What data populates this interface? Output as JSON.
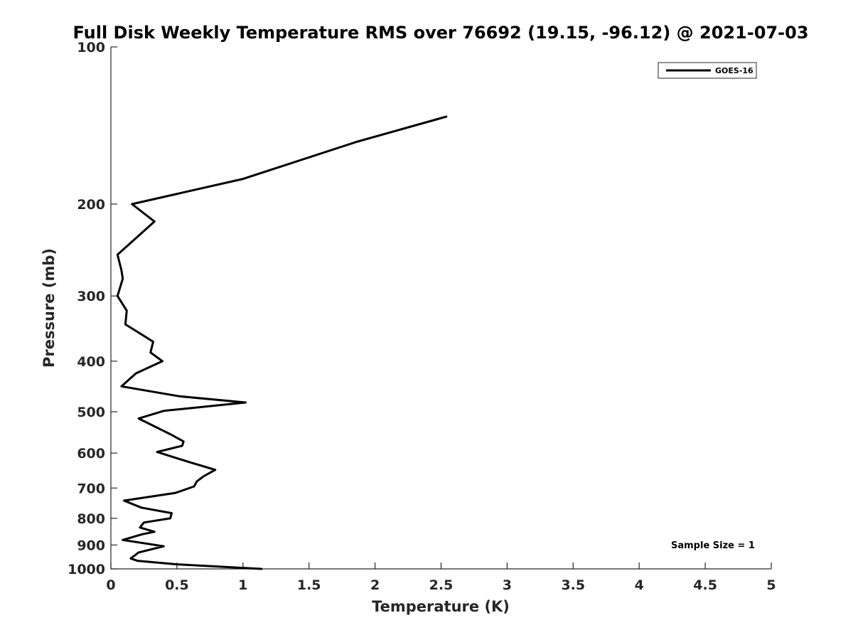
{
  "chart_data": {
    "type": "line",
    "title": "Full Disk Weekly Temperature RMS over 76692 (19.15, -96.12) @ 2021-07-03",
    "xlabel": "Temperature (K)",
    "ylabel": "Pressure (mb)",
    "xlim": [
      0,
      5
    ],
    "ylim": [
      100,
      1000
    ],
    "yscale": "log",
    "y_reversed": true,
    "x_ticks": [
      "0",
      "0.5",
      "1",
      "1.5",
      "2",
      "2.5",
      "3",
      "3.5",
      "4",
      "4.5",
      "5"
    ],
    "y_ticks": [
      "100",
      "200",
      "300",
      "400",
      "500",
      "600",
      "700",
      "800",
      "900",
      "1000"
    ],
    "grid": false,
    "legend_position": "top-right",
    "line_color": "#000000",
    "series": [
      {
        "name": "GOES-16",
        "points": [
          [
            2.54,
            136
          ],
          [
            1.86,
            152
          ],
          [
            1.0,
            179
          ],
          [
            0.16,
            200
          ],
          [
            0.33,
            216
          ],
          [
            0.05,
            250
          ],
          [
            0.08,
            268
          ],
          [
            0.09,
            278
          ],
          [
            0.05,
            300
          ],
          [
            0.12,
            320
          ],
          [
            0.11,
            340
          ],
          [
            0.32,
            367
          ],
          [
            0.3,
            385
          ],
          [
            0.39,
            400
          ],
          [
            0.19,
            422
          ],
          [
            0.08,
            447
          ],
          [
            0.52,
            467
          ],
          [
            1.02,
            480
          ],
          [
            0.4,
            498
          ],
          [
            0.21,
            515
          ],
          [
            0.45,
            552
          ],
          [
            0.55,
            570
          ],
          [
            0.54,
            581
          ],
          [
            0.35,
            597
          ],
          [
            0.6,
            625
          ],
          [
            0.79,
            646
          ],
          [
            0.7,
            665
          ],
          [
            0.65,
            680
          ],
          [
            0.63,
            695
          ],
          [
            0.49,
            715
          ],
          [
            0.1,
            740
          ],
          [
            0.23,
            763
          ],
          [
            0.46,
            782
          ],
          [
            0.45,
            800
          ],
          [
            0.25,
            815
          ],
          [
            0.22,
            833
          ],
          [
            0.33,
            849
          ],
          [
            0.24,
            858
          ],
          [
            0.09,
            880
          ],
          [
            0.4,
            905
          ],
          [
            0.21,
            930
          ],
          [
            0.15,
            955
          ],
          [
            0.2,
            965
          ],
          [
            0.5,
            980
          ],
          [
            1.14,
            1000
          ]
        ]
      }
    ],
    "annotation": "Sample Size = 1"
  }
}
